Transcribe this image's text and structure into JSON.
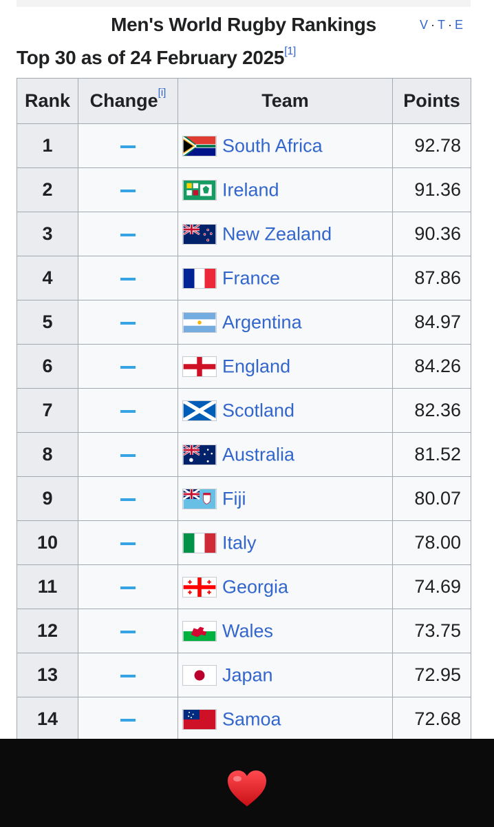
{
  "caption": {
    "title": "Men's World Rugby Rankings",
    "nav": [
      "V",
      "T",
      "E"
    ]
  },
  "subtitle": {
    "text": "Top 30 as of 24 February 2025",
    "ref": "[1]"
  },
  "table": {
    "headers": {
      "rank": "Rank",
      "change": "Change",
      "change_note": "[i]",
      "team": "Team",
      "points": "Points"
    },
    "rows": [
      {
        "rank": "1",
        "change": "–",
        "team": "South Africa",
        "flag": "south-africa-flag",
        "points": "92.78"
      },
      {
        "rank": "2",
        "change": "–",
        "team": "Ireland",
        "flag": "ireland-rugby-flag",
        "points": "91.36"
      },
      {
        "rank": "3",
        "change": "–",
        "team": "New Zealand",
        "flag": "new-zealand-flag",
        "points": "90.36"
      },
      {
        "rank": "4",
        "change": "–",
        "team": "France",
        "flag": "france-flag",
        "points": "87.86"
      },
      {
        "rank": "5",
        "change": "–",
        "team": "Argentina",
        "flag": "argentina-flag",
        "points": "84.97"
      },
      {
        "rank": "6",
        "change": "–",
        "team": "England",
        "flag": "england-flag",
        "points": "84.26"
      },
      {
        "rank": "7",
        "change": "–",
        "team": "Scotland",
        "flag": "scotland-flag",
        "points": "82.36"
      },
      {
        "rank": "8",
        "change": "–",
        "team": "Australia",
        "flag": "australia-flag",
        "points": "81.52"
      },
      {
        "rank": "9",
        "change": "–",
        "team": "Fiji",
        "flag": "fiji-flag",
        "points": "80.07"
      },
      {
        "rank": "10",
        "change": "–",
        "team": "Italy",
        "flag": "italy-flag",
        "points": "78.00"
      },
      {
        "rank": "11",
        "change": "–",
        "team": "Georgia",
        "flag": "georgia-flag",
        "points": "74.69"
      },
      {
        "rank": "12",
        "change": "–",
        "team": "Wales",
        "flag": "wales-flag",
        "points": "73.75"
      },
      {
        "rank": "13",
        "change": "–",
        "team": "Japan",
        "flag": "japan-flag",
        "points": "72.95"
      },
      {
        "rank": "14",
        "change": "–",
        "team": "Samoa",
        "flag": "samoa-flag",
        "points": "72.68"
      }
    ]
  },
  "overlay": {
    "icon": "red-heart-icon"
  },
  "colors": {
    "link": "#3366cc",
    "change_dash": "#36a3e6",
    "header_bg": "#eaecf0",
    "border": "#a2a9b1",
    "bottom_bar": "#0b0b0b",
    "heart": "#e0151c"
  }
}
